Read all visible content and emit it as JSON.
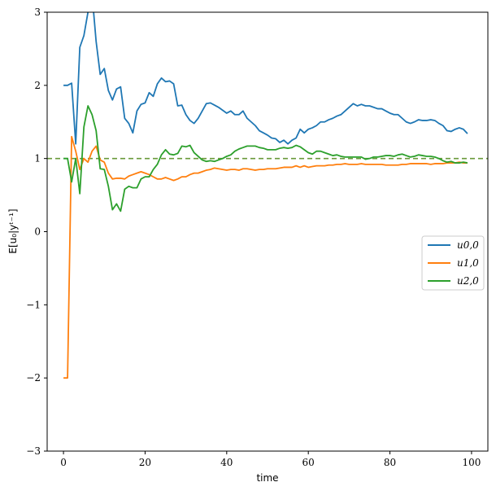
{
  "chart_data": {
    "type": "line",
    "xlabel": "time",
    "ylabel": "E[u₀|yᵗ⁻¹]",
    "xlim": [
      -4,
      104
    ],
    "ylim": [
      -3,
      3
    ],
    "xticks": [
      0,
      20,
      40,
      60,
      80,
      100
    ],
    "yticks": [
      -3,
      -2,
      -1,
      0,
      1,
      2,
      3
    ],
    "xtick_labels": [
      "0",
      "20",
      "40",
      "60",
      "80",
      "100"
    ],
    "ytick_labels": [
      "−3",
      "−2",
      "−1",
      "0",
      "1",
      "2",
      "3"
    ],
    "grid": false,
    "legend_position": "right",
    "reference_line": {
      "y": 1,
      "style": "dashed",
      "color": "#6a9a3a"
    },
    "series": [
      {
        "name": "u0,0",
        "color": "#1f77b4",
        "x": [
          0,
          1,
          2,
          3,
          4,
          5,
          6,
          7,
          8,
          9,
          10,
          11,
          12,
          13,
          14,
          15,
          16,
          17,
          18,
          19,
          20,
          21,
          22,
          23,
          24,
          25,
          26,
          27,
          28,
          29,
          30,
          31,
          32,
          33,
          34,
          35,
          36,
          37,
          38,
          39,
          40,
          41,
          42,
          43,
          44,
          45,
          46,
          47,
          48,
          49,
          50,
          51,
          52,
          53,
          54,
          55,
          56,
          57,
          58,
          59,
          60,
          61,
          62,
          63,
          64,
          65,
          66,
          67,
          68,
          69,
          70,
          71,
          72,
          73,
          74,
          75,
          76,
          77,
          78,
          79,
          80,
          81,
          82,
          83,
          84,
          85,
          86,
          87,
          88,
          89,
          90,
          91,
          92,
          93,
          94,
          95,
          96,
          97,
          98,
          99
        ],
        "y": [
          2.0,
          2.0,
          2.03,
          1.2,
          2.52,
          2.68,
          3.0,
          3.25,
          2.6,
          2.15,
          2.23,
          1.93,
          1.8,
          1.95,
          1.98,
          1.55,
          1.48,
          1.35,
          1.65,
          1.74,
          1.76,
          1.9,
          1.85,
          2.02,
          2.1,
          2.05,
          2.06,
          2.02,
          1.72,
          1.73,
          1.6,
          1.52,
          1.48,
          1.55,
          1.65,
          1.75,
          1.76,
          1.73,
          1.7,
          1.66,
          1.62,
          1.65,
          1.6,
          1.6,
          1.65,
          1.55,
          1.5,
          1.45,
          1.38,
          1.35,
          1.32,
          1.28,
          1.27,
          1.22,
          1.25,
          1.2,
          1.25,
          1.28,
          1.4,
          1.35,
          1.4,
          1.42,
          1.45,
          1.5,
          1.5,
          1.53,
          1.55,
          1.58,
          1.6,
          1.65,
          1.7,
          1.75,
          1.72,
          1.74,
          1.72,
          1.72,
          1.7,
          1.68,
          1.68,
          1.65,
          1.62,
          1.6,
          1.6,
          1.55,
          1.5,
          1.48,
          1.5,
          1.53,
          1.52,
          1.52,
          1.53,
          1.52,
          1.48,
          1.45,
          1.38,
          1.37,
          1.4,
          1.42,
          1.4,
          1.34
        ]
      },
      {
        "name": "u1,0",
        "color": "#ff7f0e",
        "x": [
          0,
          1,
          2,
          3,
          4,
          5,
          6,
          7,
          8,
          9,
          10,
          11,
          12,
          13,
          14,
          15,
          16,
          17,
          18,
          19,
          20,
          21,
          22,
          23,
          24,
          25,
          26,
          27,
          28,
          29,
          30,
          31,
          32,
          33,
          34,
          35,
          36,
          37,
          38,
          39,
          40,
          41,
          42,
          43,
          44,
          45,
          46,
          47,
          48,
          49,
          50,
          51,
          52,
          53,
          54,
          55,
          56,
          57,
          58,
          59,
          60,
          61,
          62,
          63,
          64,
          65,
          66,
          67,
          68,
          69,
          70,
          71,
          72,
          73,
          74,
          75,
          76,
          77,
          78,
          79,
          80,
          81,
          82,
          83,
          84,
          85,
          86,
          87,
          88,
          89,
          90,
          91,
          92,
          93,
          94,
          95,
          96,
          97,
          98,
          99
        ],
        "y": [
          -2.0,
          -2.0,
          1.3,
          1.1,
          0.85,
          1.0,
          0.95,
          1.1,
          1.17,
          0.98,
          0.95,
          0.8,
          0.72,
          0.73,
          0.73,
          0.72,
          0.76,
          0.78,
          0.8,
          0.82,
          0.8,
          0.78,
          0.75,
          0.72,
          0.72,
          0.74,
          0.72,
          0.7,
          0.72,
          0.75,
          0.75,
          0.78,
          0.8,
          0.8,
          0.82,
          0.84,
          0.85,
          0.87,
          0.86,
          0.85,
          0.84,
          0.85,
          0.85,
          0.84,
          0.86,
          0.86,
          0.85,
          0.84,
          0.85,
          0.85,
          0.86,
          0.86,
          0.86,
          0.87,
          0.88,
          0.88,
          0.88,
          0.9,
          0.88,
          0.9,
          0.88,
          0.89,
          0.9,
          0.9,
          0.9,
          0.91,
          0.91,
          0.92,
          0.92,
          0.93,
          0.92,
          0.92,
          0.92,
          0.93,
          0.92,
          0.92,
          0.92,
          0.92,
          0.92,
          0.91,
          0.91,
          0.91,
          0.91,
          0.92,
          0.92,
          0.93,
          0.93,
          0.93,
          0.93,
          0.93,
          0.92,
          0.93,
          0.93,
          0.93,
          0.94,
          0.94,
          0.94,
          0.95,
          0.94,
          0.94
        ]
      },
      {
        "name": "u2,0",
        "color": "#2ca02c",
        "x": [
          0,
          1,
          2,
          3,
          4,
          5,
          6,
          7,
          8,
          9,
          10,
          11,
          12,
          13,
          14,
          15,
          16,
          17,
          18,
          19,
          20,
          21,
          22,
          23,
          24,
          25,
          26,
          27,
          28,
          29,
          30,
          31,
          32,
          33,
          34,
          35,
          36,
          37,
          38,
          39,
          40,
          41,
          42,
          43,
          44,
          45,
          46,
          47,
          48,
          49,
          50,
          51,
          52,
          53,
          54,
          55,
          56,
          57,
          58,
          59,
          60,
          61,
          62,
          63,
          64,
          65,
          66,
          67,
          68,
          69,
          70,
          71,
          72,
          73,
          74,
          75,
          76,
          77,
          78,
          79,
          80,
          81,
          82,
          83,
          84,
          85,
          86,
          87,
          88,
          89,
          90,
          91,
          92,
          93,
          94,
          95,
          96,
          97,
          98,
          99
        ],
        "y": [
          1.0,
          1.0,
          0.68,
          1.0,
          0.52,
          1.43,
          1.72,
          1.6,
          1.38,
          0.86,
          0.85,
          0.62,
          0.3,
          0.38,
          0.28,
          0.58,
          0.62,
          0.6,
          0.6,
          0.72,
          0.75,
          0.75,
          0.85,
          0.92,
          1.05,
          1.12,
          1.06,
          1.05,
          1.07,
          1.17,
          1.16,
          1.18,
          1.08,
          1.03,
          0.98,
          0.96,
          0.97,
          0.96,
          0.98,
          1.0,
          1.03,
          1.05,
          1.1,
          1.13,
          1.15,
          1.17,
          1.17,
          1.17,
          1.15,
          1.14,
          1.12,
          1.12,
          1.12,
          1.14,
          1.15,
          1.14,
          1.15,
          1.18,
          1.16,
          1.12,
          1.08,
          1.06,
          1.1,
          1.1,
          1.08,
          1.06,
          1.04,
          1.05,
          1.03,
          1.02,
          1.02,
          1.02,
          1.02,
          1.02,
          0.99,
          1.0,
          1.02,
          1.02,
          1.03,
          1.04,
          1.04,
          1.03,
          1.05,
          1.06,
          1.04,
          1.02,
          1.03,
          1.05,
          1.04,
          1.03,
          1.03,
          1.02,
          1.0,
          0.97,
          0.95,
          0.96,
          0.94,
          0.94,
          0.95,
          0.94
        ]
      }
    ]
  }
}
